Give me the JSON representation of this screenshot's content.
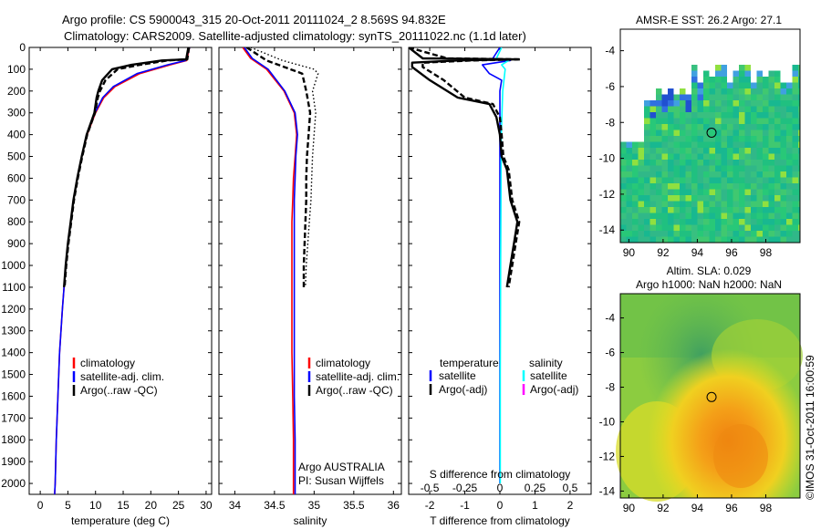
{
  "title": {
    "line1": "Argo profile: CS 5900043_315 20-Oct-2011 20111024_2 8.569S 94.832E",
    "line2": "Climatology: CARS2009. Satellite-adjusted climatology: synTS_20111022.nc (1.1d later)"
  },
  "colors": {
    "climatology": "#ff0000",
    "satellite": "#0000ff",
    "argo": "#000000",
    "sal_satellite": "#00ffff",
    "sal_argo": "#ff00ff"
  },
  "chart_data": [
    {
      "id": "temperature",
      "type": "line",
      "xlabel": "temperature (deg C)",
      "xlim": [
        -2,
        31
      ],
      "ylim": [
        0,
        2050
      ],
      "y_reversed": true,
      "xticks": [
        0,
        5,
        10,
        15,
        20,
        25,
        30
      ],
      "yticks": [
        0,
        100,
        200,
        300,
        400,
        500,
        600,
        700,
        800,
        900,
        1000,
        1100,
        1200,
        1300,
        1400,
        1500,
        1600,
        1700,
        1800,
        1900,
        2000
      ],
      "legend": [
        "climatology",
        "satellite-adj. clim.",
        "Argo(..raw -QC)"
      ],
      "series": [
        {
          "name": "climatology",
          "style": "solid",
          "color": "#ff0000",
          "depth": [
            0,
            60,
            80,
            120,
            180,
            230,
            300,
            400,
            500,
            600,
            700,
            800,
            900,
            1000,
            1200,
            1400,
            1600,
            1800,
            2000,
            2050
          ],
          "values": [
            27.0,
            26.5,
            23.5,
            18.0,
            13.5,
            11.5,
            10.0,
            8.5,
            7.5,
            6.7,
            6.0,
            5.5,
            5.0,
            4.6,
            4.0,
            3.5,
            3.2,
            2.9,
            2.7,
            2.6
          ]
        },
        {
          "name": "satellite-adj. clim.",
          "style": "solid",
          "color": "#0000ff",
          "depth": [
            0,
            60,
            80,
            120,
            180,
            230,
            300,
            400,
            500,
            600,
            700,
            800,
            900,
            1000,
            1200,
            1400,
            1600,
            1800,
            2000,
            2050
          ],
          "values": [
            27.0,
            26.3,
            23.0,
            17.5,
            13.2,
            11.3,
            9.9,
            8.4,
            7.5,
            6.7,
            6.0,
            5.5,
            5.0,
            4.6,
            4.0,
            3.5,
            3.2,
            2.9,
            2.7,
            2.6
          ]
        },
        {
          "name": "Argo(..raw -QC)",
          "style": "solid-thick",
          "color": "#000000",
          "depth": [
            0,
            55,
            60,
            80,
            100,
            150,
            200,
            230,
            300,
            400,
            500,
            600,
            700,
            800,
            900,
            1000,
            1100
          ],
          "values": [
            26.8,
            26.4,
            22.0,
            16.5,
            13.0,
            11.2,
            10.5,
            10.2,
            9.8,
            8.4,
            7.5,
            6.7,
            6.0,
            5.5,
            5.0,
            4.6,
            4.3
          ]
        },
        {
          "name": "Argo(..raw -QC)",
          "style": "dashed",
          "color": "#000000",
          "depth": [
            0,
            55,
            60,
            80,
            100,
            150,
            200,
            230,
            300,
            400,
            500,
            600,
            700,
            800,
            900,
            1000,
            1100
          ],
          "values": [
            26.9,
            26.6,
            23.0,
            18.0,
            14.0,
            11.8,
            10.8,
            10.4,
            9.9,
            8.5,
            7.6,
            6.8,
            6.1,
            5.6,
            5.1,
            4.7,
            4.4
          ]
        }
      ]
    },
    {
      "id": "salinity",
      "type": "line",
      "xlabel": "salinity",
      "xlim": [
        33.8,
        36.1
      ],
      "ylim": [
        0,
        2050
      ],
      "y_reversed": true,
      "xticks": [
        34,
        34.5,
        35,
        35.5,
        36
      ],
      "legend": [
        "climatology",
        "satellite-adj. clim.",
        "Argo(..raw -QC)"
      ],
      "annotation": [
        "Argo AUSTRALIA",
        "PI: Susan Wijffels"
      ],
      "series": [
        {
          "name": "climatology",
          "style": "solid",
          "color": "#ff0000",
          "depth": [
            0,
            50,
            100,
            200,
            300,
            400,
            500,
            600,
            700,
            800,
            900,
            1000,
            1200,
            1400,
            1600,
            1800,
            2000,
            2050
          ],
          "values": [
            34.1,
            34.2,
            34.4,
            34.62,
            34.75,
            34.78,
            34.76,
            34.74,
            34.73,
            34.72,
            34.72,
            34.72,
            34.72,
            34.72,
            34.73,
            34.74,
            34.74,
            34.74
          ]
        },
        {
          "name": "satellite-adj. clim.",
          "style": "solid",
          "color": "#0000ff",
          "depth": [
            0,
            50,
            100,
            200,
            300,
            400,
            500,
            600,
            700,
            800,
            900,
            1000,
            1200,
            1400,
            1600,
            1800,
            2000,
            2050
          ],
          "values": [
            34.12,
            34.22,
            34.42,
            34.63,
            34.76,
            34.79,
            34.77,
            34.76,
            34.75,
            34.75,
            34.75,
            34.75,
            34.75,
            34.75,
            34.75,
            34.76,
            34.76,
            34.76
          ]
        },
        {
          "name": "Argo(..raw -QC)",
          "style": "dashed",
          "color": "#000000",
          "depth": [
            0,
            60,
            100,
            120,
            200,
            300,
            400,
            500,
            600,
            700,
            800,
            900,
            1000,
            1100
          ],
          "values": [
            34.15,
            34.4,
            34.7,
            34.85,
            34.9,
            34.95,
            34.93,
            34.91,
            34.9,
            34.9,
            34.89,
            34.88,
            34.87,
            34.87
          ]
        },
        {
          "name": "Argo(..raw -QC)",
          "style": "dotted",
          "color": "#000000",
          "depth": [
            0,
            60,
            100,
            120,
            200,
            300,
            400,
            500,
            600,
            700,
            800,
            900,
            1000,
            1100
          ],
          "values": [
            34.2,
            34.6,
            35.0,
            35.05,
            34.98,
            35.02,
            35.0,
            34.98,
            34.97,
            34.96,
            34.94,
            34.92,
            34.9,
            34.89
          ]
        }
      ]
    },
    {
      "id": "difference",
      "type": "line",
      "xlabel": "T difference from climatology",
      "xlabel_top": "S difference from climatology",
      "xlim": [
        -2.6,
        2.6
      ],
      "ylim": [
        0,
        2050
      ],
      "y_reversed": true,
      "xticks": [
        -2,
        -1,
        0,
        1,
        2
      ],
      "xticks_S": [
        -0.5,
        -0.25,
        0,
        0.25,
        0.5
      ],
      "legend_temperature": {
        "title": "temperature",
        "items": [
          "satellite",
          "Argo(-adj)"
        ]
      },
      "legend_salinity": {
        "title": "salinity",
        "items": [
          "satellite",
          "Argo(-adj)"
        ]
      },
      "series": [
        {
          "name": "T satellite",
          "style": "solid",
          "color": "#0000ff",
          "depth": [
            0,
            50,
            60,
            80,
            120,
            150,
            200,
            400,
            1000,
            2000
          ],
          "values": [
            0,
            -0.2,
            0.3,
            -0.5,
            -0.3,
            0.05,
            0,
            0,
            0,
            0
          ]
        },
        {
          "name": "S satellite",
          "style": "solid",
          "color": "#00ffff",
          "depth": [
            0,
            50,
            60,
            80,
            100,
            200,
            400,
            1000,
            1500,
            2000
          ],
          "values": [
            0.05,
            -0.1,
            0.25,
            0.05,
            0.15,
            0.08,
            0.04,
            0.02,
            0.01,
            0.01
          ]
        },
        {
          "name": "T Argo(-adj)",
          "style": "solid-thick",
          "color": "#000000",
          "depth": [
            0,
            50,
            55,
            60,
            70,
            90,
            150,
            230,
            260,
            320,
            400,
            500,
            560,
            700,
            800,
            900,
            1000,
            1100
          ],
          "values": [
            -2.6,
            -2.2,
            0.5,
            -1.2,
            -2.5,
            -2.5,
            -2.0,
            -1.2,
            -0.3,
            -0.1,
            0.0,
            0.05,
            0.2,
            0.3,
            0.5,
            0.4,
            0.3,
            0.2
          ]
        },
        {
          "name": "T Argo(-adj) raw",
          "style": "dashed",
          "color": "#000000",
          "depth": [
            0,
            50,
            55,
            60,
            70,
            90,
            150,
            230,
            260,
            320,
            400,
            500,
            560,
            700,
            800,
            900,
            1000,
            1100
          ],
          "values": [
            -2.6,
            -1.5,
            0.6,
            -0.8,
            -2.2,
            -2.2,
            -1.6,
            -1.0,
            -0.2,
            0.0,
            0.05,
            0.1,
            0.25,
            0.35,
            0.55,
            0.45,
            0.35,
            0.25
          ]
        },
        {
          "name": "S Argo(-adj)",
          "style": "solid",
          "color": "#ff00ff",
          "depth": [
            0
          ],
          "values": [
            0
          ]
        }
      ]
    },
    {
      "id": "sst_map",
      "type": "heatmap",
      "title": "AMSR-E SST: 26.2 Argo: 27.1",
      "xlim": [
        89.5,
        100
      ],
      "ylim": [
        -14.7,
        -2.8
      ],
      "xticks": [
        90,
        92,
        94,
        96,
        98
      ],
      "yticks": [
        -4,
        -6,
        -8,
        -10,
        -12,
        -14
      ],
      "argo_position": {
        "lon": 94.832,
        "lat": -8.569
      }
    },
    {
      "id": "sla_map",
      "type": "heatmap",
      "title_line1": "Altim. SLA: 0.029",
      "title_line2": "Argo h1000: NaN h2000: NaN",
      "xlim": [
        89.5,
        100
      ],
      "ylim": [
        -14.4,
        -2.6
      ],
      "xticks": [
        90,
        92,
        94,
        96,
        98
      ],
      "yticks": [
        -4,
        -6,
        -8,
        -10,
        -12,
        -14
      ],
      "argo_position": {
        "lon": 94.832,
        "lat": -8.569
      }
    }
  ],
  "side_label": "©IMOS 31-Oct-2011 16:00:59"
}
